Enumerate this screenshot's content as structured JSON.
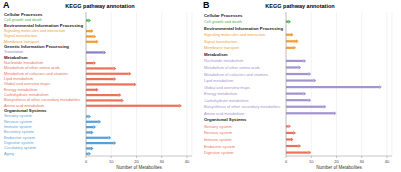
{
  "chart_data": [
    {
      "panel": "A",
      "type": "bar",
      "orientation": "horizontal",
      "title": "KEGG pathway annotation",
      "x_label": "Number of Metabolites",
      "xlim": [
        0,
        42
      ],
      "xticks": [
        0,
        10,
        20,
        30,
        40
      ],
      "grid": true,
      "groups": [
        {
          "name": "Cellular Processes",
          "color": "#4daf4a",
          "categories": [
            "Cell growth and death"
          ],
          "values": [
            2
          ]
        },
        {
          "name": "Environmental Information Processing",
          "color": "#f39c33",
          "categories": [
            "Signaling molecules and interaction",
            "Signal transduction",
            "Membrane transport"
          ],
          "values": [
            3,
            4,
            5
          ]
        },
        {
          "name": "Genetic Information Processing",
          "color": "#8e7cc3",
          "categories": [
            "Translation"
          ],
          "values": [
            8
          ]
        },
        {
          "name": "Metabolism",
          "color": "#e8735a",
          "categories": [
            "Nucleotide metabolism",
            "Metabolism of other amino acids",
            "Metabolism of cofactors and vitamins",
            "Lipid metabolism",
            "Global and overview maps",
            "Energy metabolism",
            "Carbohydrate metabolism",
            "Biosynthesis of other secondary metabolites",
            "Amino acid metabolism"
          ],
          "values": [
            4,
            12,
            18,
            12,
            20,
            5,
            14,
            15,
            38
          ]
        },
        {
          "name": "Organismal Systems",
          "color": "#5a9fd4",
          "categories": [
            "Sensory system",
            "Nervous system",
            "Immune system",
            "Excretory system",
            "Endocrine system",
            "Digestive system",
            "Circulatory system",
            "Aging"
          ],
          "values": [
            2,
            6,
            4,
            3,
            10,
            12,
            3,
            2
          ]
        }
      ]
    },
    {
      "panel": "B",
      "type": "bar",
      "orientation": "horizontal",
      "title": "KEGG pathway annotation",
      "x_label": "Number of Metabolites",
      "xlim": [
        0,
        42
      ],
      "xticks": [
        0,
        10,
        20,
        30,
        40
      ],
      "grid": true,
      "groups": [
        {
          "name": "Cellular Processes",
          "color": "#4daf4a",
          "categories": [
            "Cell growth and death"
          ],
          "values": [
            2
          ]
        },
        {
          "name": "Environmental Information Processing",
          "color": "#f39c33",
          "categories": [
            "Signaling molecules and interaction",
            "Signal transduction",
            "Membrane transport"
          ],
          "values": [
            3,
            5,
            4
          ]
        },
        {
          "name": "Metabolism",
          "color": "#a394d0",
          "categories": [
            "Nucleotide metabolism",
            "Metabolism of other amino acids",
            "Metabolism of cofactors and vitamins",
            "Lipid metabolism",
            "Global and overview maps",
            "Energy metabolism",
            "Carbohydrate metabolism",
            "Biosynthesis of other secondary metabolites",
            "Amino acid metabolism"
          ],
          "values": [
            8,
            6,
            10,
            12,
            38,
            8,
            10,
            16,
            20
          ]
        },
        {
          "name": "Organismal Systems",
          "color": "#e8735a",
          "categories": [
            "Sensory system",
            "Nervous system",
            "Immune system",
            "Endocrine system",
            "Digestive system"
          ],
          "values": [
            2,
            4,
            3,
            6,
            10
          ]
        }
      ]
    }
  ]
}
